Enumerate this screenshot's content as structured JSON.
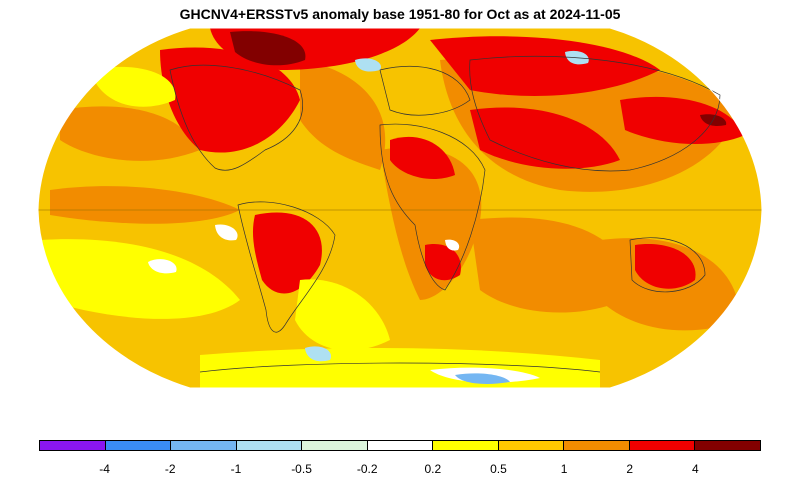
{
  "title": "GHCNV4+ERSSTv5 anomaly base 1951-80 for Oct as at 2024-11-05",
  "legend": {
    "colors": [
      "#8a16f0",
      "#3a8cf5",
      "#74b6f2",
      "#aee0f2",
      "#dcf5dc",
      "#ffffff",
      "#ffff00",
      "#ffc800",
      "#f28c00",
      "#f00000",
      "#820000"
    ],
    "labels": [
      "-4",
      "-2",
      "-1",
      "-0.5",
      "-0.2",
      "0.2",
      "0.5",
      "1",
      "2",
      "4"
    ]
  },
  "palette": {
    "ocean_base": "#f7c300",
    "land_warm": "#f28c00",
    "hot": "#f00000",
    "very_hot": "#820000",
    "mild": "#ffff00",
    "cool": "#aee0f2",
    "cold": "#74b6f2"
  }
}
